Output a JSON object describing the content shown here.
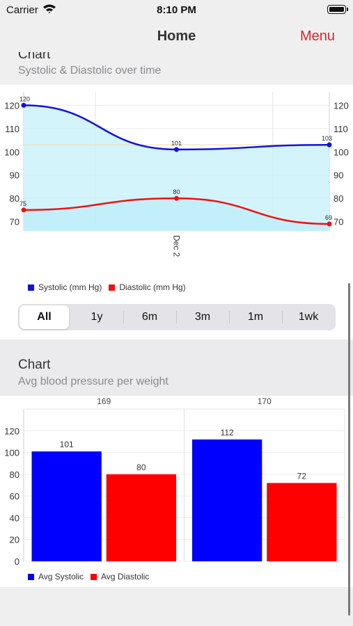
{
  "status_bar": {
    "carrier": "Carrier",
    "time": "8:10 PM"
  },
  "nav": {
    "title": "Home",
    "menu_label": "Menu"
  },
  "section1": {
    "title": "Chart",
    "subtitle": "Systolic & Diastolic over time"
  },
  "section2": {
    "title": "Chart",
    "subtitle": "Avg blood pressure per weight"
  },
  "range_selector": {
    "options": [
      "All",
      "1y",
      "6m",
      "3m",
      "1m",
      "1wk"
    ],
    "selected": "All"
  },
  "colors": {
    "accent": "#d2292d",
    "systolic": "#1212dd",
    "diastolic": "#ee1111",
    "area_fill": "#c9f1fb"
  },
  "icons": {
    "wifi": "wifi-icon",
    "battery": "battery-icon"
  },
  "chart_data": [
    {
      "type": "line",
      "x": [
        "",
        "Dec 2",
        ""
      ],
      "x_tick_labels": [
        "Dec 2"
      ],
      "series": [
        {
          "name": "Systolic (mm Hg)",
          "values": [
            120,
            101,
            103
          ],
          "color": "#1212dd"
        },
        {
          "name": "Diastolic (mm Hg)",
          "values": [
            75,
            80,
            69
          ],
          "color": "#ee1111"
        }
      ],
      "y_ticks": [
        70,
        80,
        90,
        100,
        110,
        120
      ],
      "ylim": [
        66,
        121
      ],
      "area_fill": true,
      "grid": true,
      "legend": "bottom-left"
    },
    {
      "type": "bar",
      "categories": [
        "169",
        "170"
      ],
      "series": [
        {
          "name": "Avg Systolic",
          "values": [
            101,
            112
          ],
          "color": "#0000ff"
        },
        {
          "name": "Avg Diastolic",
          "values": [
            80,
            72
          ],
          "color": "#ff0000"
        }
      ],
      "y_ticks": [
        0,
        20,
        40,
        60,
        80,
        100,
        120
      ],
      "ylim": [
        0,
        140
      ],
      "grid": true,
      "legend": "bottom-left"
    }
  ]
}
